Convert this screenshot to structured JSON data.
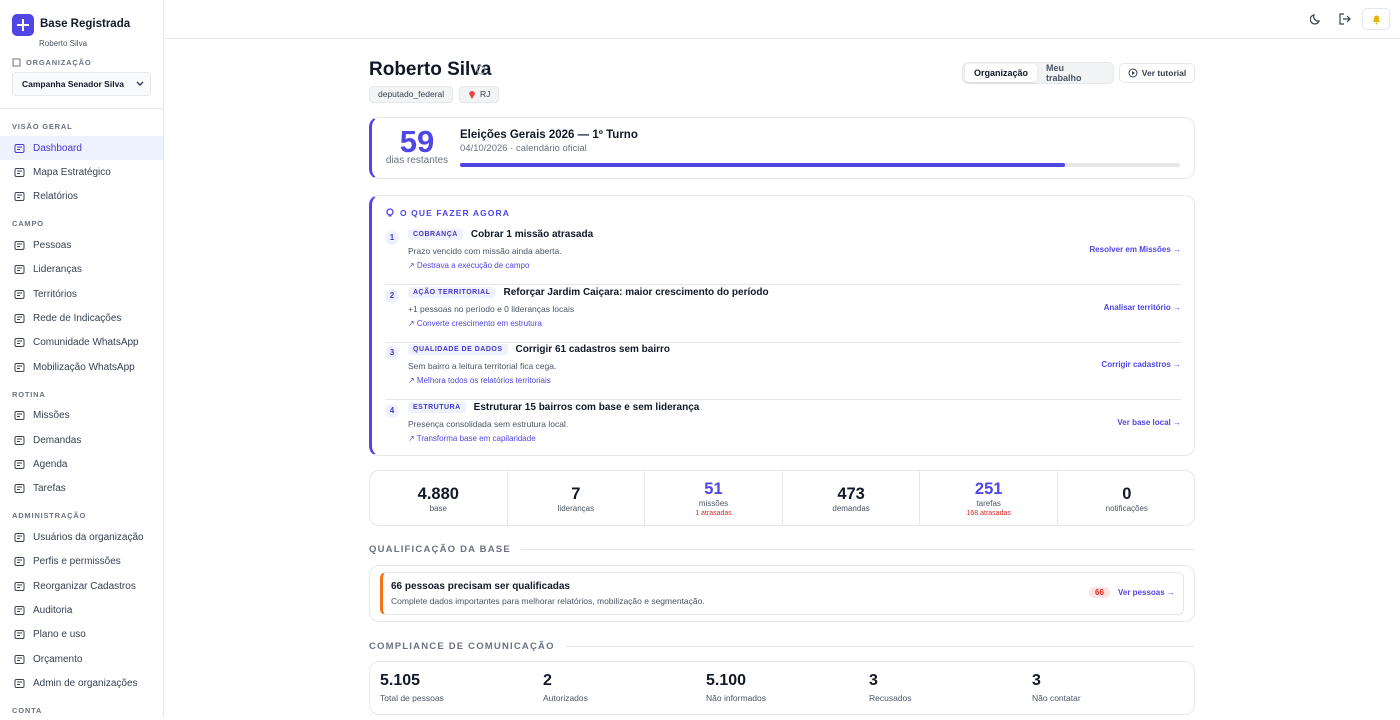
{
  "sidebar": {
    "brand": "Base Registrada",
    "user": "Roberto Silva",
    "org_label": "ORGANIZAÇÃO",
    "org_select": "Campanha Senador Silva",
    "sections": [
      {
        "title": "VISÃO GERAL",
        "items": [
          "Dashboard",
          "Mapa Estratégico",
          "Relatórios"
        ]
      },
      {
        "title": "CAMPO",
        "items": [
          "Pessoas",
          "Lideranças",
          "Territórios",
          "Rede de Indicações",
          "Comunidade WhatsApp",
          "Mobilização WhatsApp"
        ]
      },
      {
        "title": "ROTINA",
        "items": [
          "Missões",
          "Demandas",
          "Agenda",
          "Tarefas"
        ]
      },
      {
        "title": "ADMINISTRAÇÃO",
        "items": [
          "Usuários da organização",
          "Perfis e permissões",
          "Reorganizar Cadastros",
          "Auditoria",
          "Plano e uso",
          "Orçamento",
          "Admin de organizações"
        ]
      },
      {
        "title": "CONTA",
        "items": []
      }
    ]
  },
  "header": {
    "name": "Roberto Silva",
    "tags": [
      "deputado_federal",
      "RJ"
    ],
    "tabs": [
      "Organização",
      "Meu trabalho"
    ],
    "tutorial": "Ver tutorial"
  },
  "countdown": {
    "days": "59",
    "days_label": "dias restantes",
    "title": "Eleições Gerais 2026 — 1º Turno",
    "subtitle": "04/10/2026 · calendário oficial",
    "progress": 84
  },
  "actions": {
    "title": "O QUE FAZER AGORA",
    "items": [
      {
        "number": "1",
        "tag": "COBRANÇA",
        "title": "Cobrar 1 missão atrasada",
        "description": "Prazo vencido com missão ainda aberta.",
        "impact": "↗ Destrava a execução de campo",
        "link": "Resolver em Missões →"
      },
      {
        "number": "2",
        "tag": "AÇÃO TERRITORIAL",
        "title": "Reforçar Jardim Caiçara: maior crescimento do período",
        "description": "+1 pessoas no período e 0 lideranças locais",
        "impact": "↗ Converte crescimento em estrutura",
        "link": "Analisar território →"
      },
      {
        "number": "3",
        "tag": "QUALIDADE DE DADOS",
        "title": "Corrigir 61 cadastros sem bairro",
        "description": "Sem bairro a leitura territorial fica cega.",
        "impact": "↗ Melhora todos os relatórios territoriais",
        "link": "Corrigir cadastros →"
      },
      {
        "number": "4",
        "tag": "ESTRUTURA",
        "title": "Estruturar 15 bairros com base e sem liderança",
        "description": "Presença consolidada sem estrutura local.",
        "impact": "↗ Transforma base em capilaridade",
        "link": "Ver base local →"
      }
    ]
  },
  "stats": [
    {
      "value": "4.880",
      "label": "base"
    },
    {
      "value": "7",
      "label": "lideranças"
    },
    {
      "value": "51",
      "label": "missões",
      "detail": "1 atrasadas"
    },
    {
      "value": "473",
      "label": "demandas"
    },
    {
      "value": "251",
      "label": "tarefas",
      "detail": "168 atrasadas"
    },
    {
      "value": "0",
      "label": "notificações"
    }
  ],
  "qualification": {
    "heading": "QUALIFICAÇÃO DA BASE",
    "title": "66 pessoas precisam ser qualificadas",
    "description": "Complete dados importantes para melhorar relatórios, mobilização e segmentação.",
    "count": "66",
    "link": "Ver pessoas →"
  },
  "compliance": {
    "heading": "COMPLIANCE DE COMUNICAÇÃO",
    "items": [
      {
        "value": "5.105",
        "label": "Total de pessoas"
      },
      {
        "value": "2",
        "label": "Autorizados"
      },
      {
        "value": "5.100",
        "label": "Não informados"
      },
      {
        "value": "3",
        "label": "Recusados"
      },
      {
        "value": "3",
        "label": "Não contatar"
      }
    ]
  }
}
